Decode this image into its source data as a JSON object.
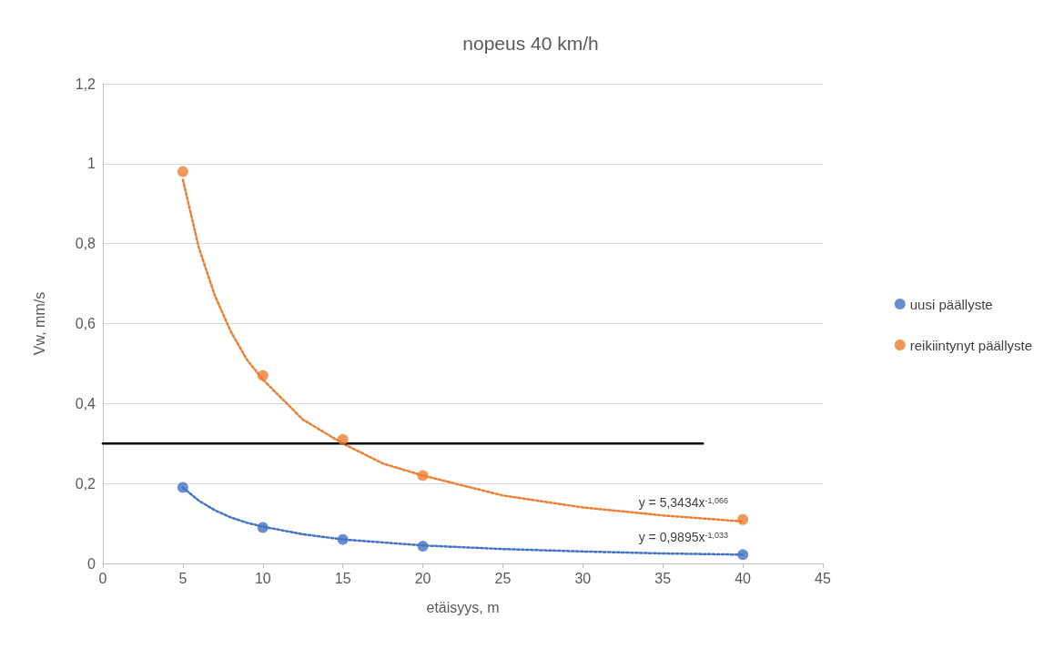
{
  "chart_data": {
    "type": "scatter",
    "title": "nopeus 40 km/h",
    "xlabel": "etäisyys, m",
    "ylabel": "Vw, mm/s",
    "xlim": [
      0,
      45
    ],
    "xticks": [
      0,
      5,
      10,
      15,
      20,
      25,
      30,
      35,
      40,
      45
    ],
    "ylim": [
      0,
      1.2
    ],
    "yticks": [
      0,
      {
        "value": 0.2,
        "label": "0,2"
      },
      {
        "value": 0.4,
        "label": "0,4"
      },
      {
        "value": 0.6,
        "label": "0,6"
      },
      {
        "value": 0.8,
        "label": "0,8"
      },
      1,
      {
        "value": 1.2,
        "label": "1,2"
      }
    ],
    "grid": "y",
    "legend": "right",
    "series": [
      {
        "name": "uusi päällyste",
        "marker": "circle",
        "color": "#4472c4",
        "x": [
          5,
          10,
          15,
          20,
          40
        ],
        "values": [
          0.19,
          0.09,
          0.06,
          0.043,
          0.022
        ]
      },
      {
        "name": "reikiintynyt päällyste",
        "marker": "circle",
        "color": "#ed7d31",
        "x": [
          5,
          10,
          15,
          20,
          40
        ],
        "values": [
          0.98,
          0.47,
          0.31,
          0.22,
          0.11
        ]
      },
      {
        "type": "line",
        "marker": "none",
        "line_style": "dotted",
        "color": "#4472c4",
        "x": [
          5,
          6,
          7,
          8,
          9,
          10,
          12.5,
          15,
          20,
          25,
          30,
          35,
          40
        ],
        "values": [
          0.19,
          0.157,
          0.133,
          0.115,
          0.102,
          0.092,
          0.073,
          0.06,
          0.045,
          0.036,
          0.03,
          0.025,
          0.022
        ]
      },
      {
        "type": "line",
        "marker": "none",
        "line_style": "dotted",
        "color": "#ed7d31",
        "x": [
          5,
          6,
          7,
          8,
          9,
          10,
          12.5,
          15,
          17.5,
          20,
          25,
          30,
          35,
          40
        ],
        "values": [
          0.96,
          0.79,
          0.67,
          0.58,
          0.51,
          0.46,
          0.36,
          0.3,
          0.25,
          0.22,
          0.17,
          0.14,
          0.12,
          0.105
        ]
      },
      {
        "type": "line",
        "marker": "none",
        "line_style": "solid",
        "color": "#000000",
        "x": [
          0,
          37.5
        ],
        "values": [
          0.3,
          0.3
        ]
      }
    ],
    "annotations": [
      "y = 5,3434x$^{-1,066}$",
      "y = 0,9895x$^{-1,033}$"
    ]
  }
}
